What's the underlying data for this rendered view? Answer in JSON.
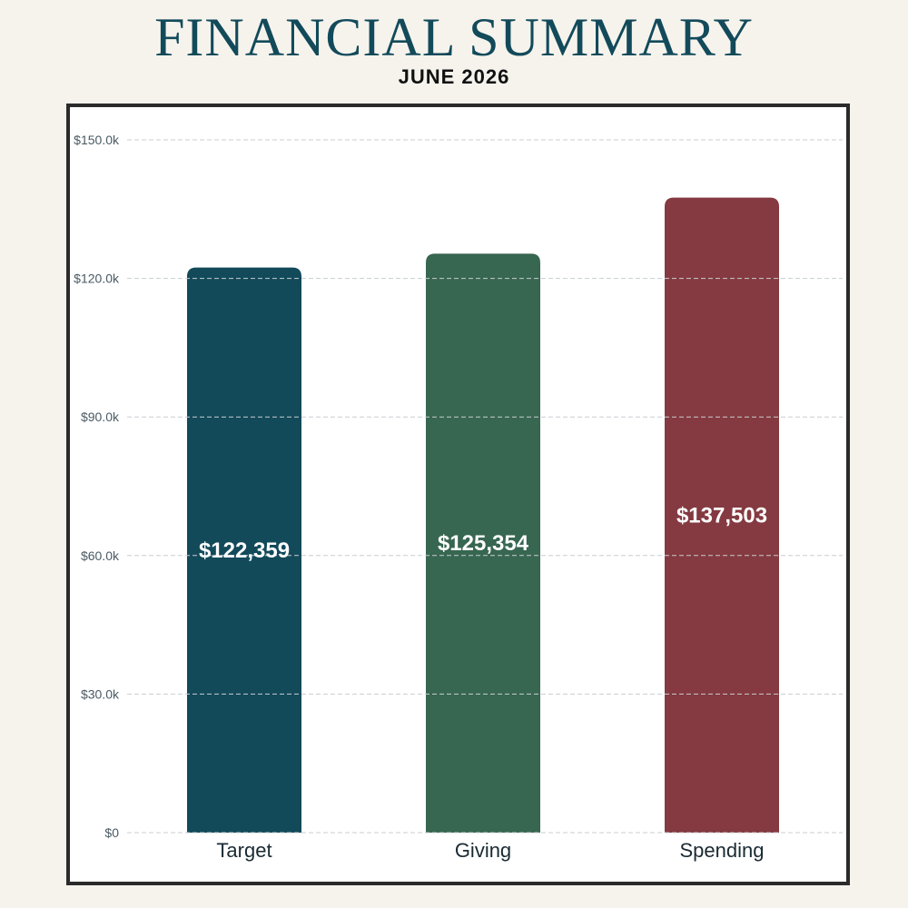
{
  "header": {
    "title": "FINANCIAL SUMMARY",
    "subtitle": "JUNE 2026"
  },
  "chart_data": {
    "type": "bar",
    "categories": [
      "Target",
      "Giving",
      "Spending"
    ],
    "values": [
      122359,
      125354,
      137503
    ],
    "value_labels": [
      "$122,359",
      "$125,354",
      "$137,503"
    ],
    "colors": [
      "#124a5a",
      "#376651",
      "#843a40"
    ],
    "ylim": [
      0,
      150000
    ],
    "yticks": [
      0,
      30000,
      60000,
      90000,
      120000,
      150000
    ],
    "ytick_labels": [
      "$0",
      "$30.0k",
      "$60.0k",
      "$90.0k",
      "$120.0k",
      "$150.0k"
    ],
    "grid": true,
    "title": "FINANCIAL SUMMARY",
    "subtitle": "JUNE 2026",
    "xlabel": "",
    "ylabel": ""
  }
}
